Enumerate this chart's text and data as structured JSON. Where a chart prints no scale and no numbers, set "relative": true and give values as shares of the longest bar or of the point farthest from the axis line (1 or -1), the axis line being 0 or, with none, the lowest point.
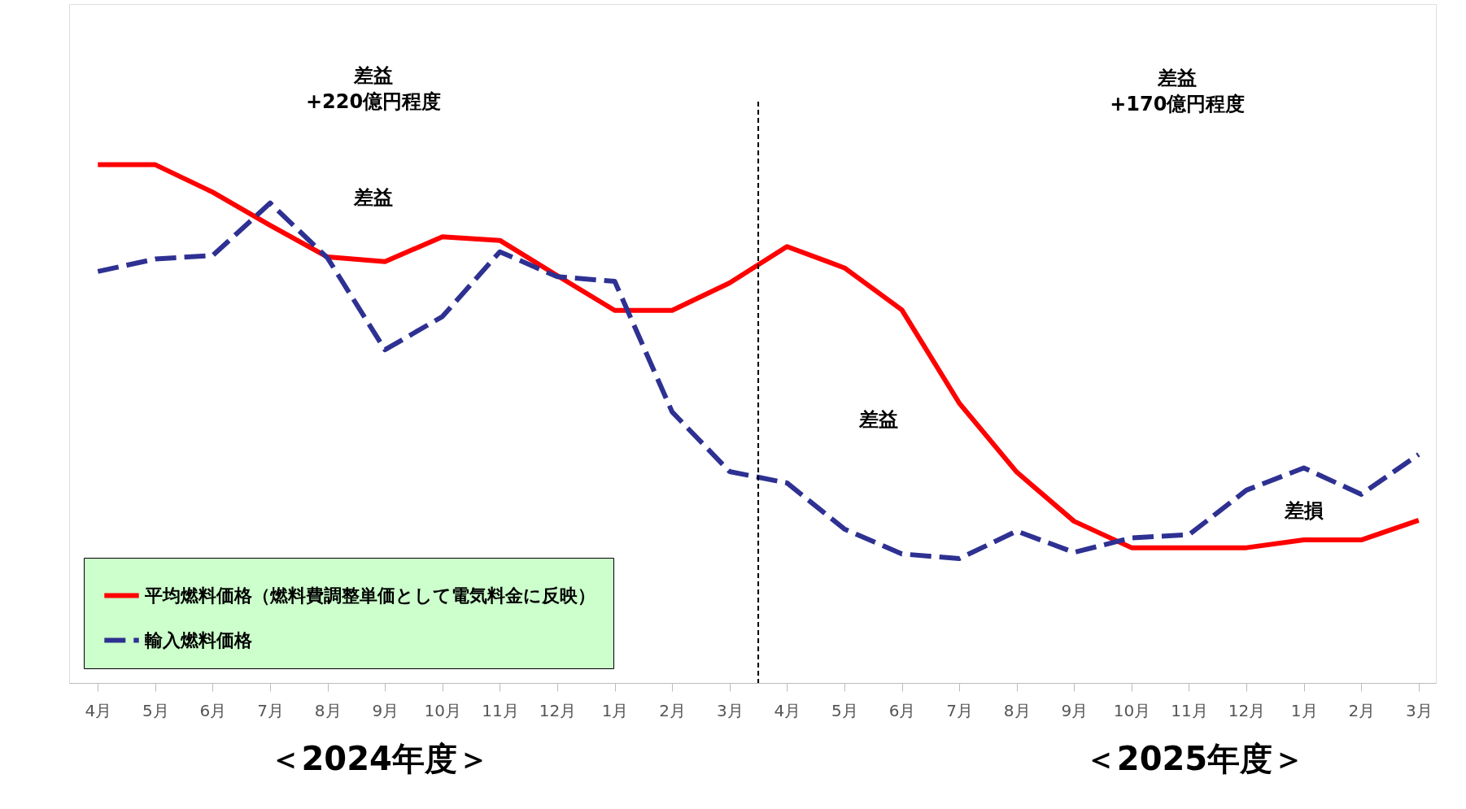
{
  "chart_data": {
    "type": "line",
    "relative": true,
    "categories": [
      "4月",
      "5月",
      "6月",
      "7月",
      "8月",
      "9月",
      "10月",
      "11月",
      "12月",
      "1月",
      "2月",
      "3月",
      "4月",
      "5月",
      "6月",
      "7月",
      "8月",
      "9月",
      "10月",
      "11月",
      "12月",
      "1月",
      "2月",
      "3月"
    ],
    "series": [
      {
        "name": "平均燃料価格（燃料費調整単価として電気料金に反映）",
        "color": "#ff0000",
        "line_style": "solid",
        "values": [
          1.0,
          1.0,
          0.947,
          0.883,
          0.822,
          0.813,
          0.861,
          0.854,
          0.786,
          0.719,
          0.719,
          0.772,
          0.842,
          0.801,
          0.72,
          0.54,
          0.407,
          0.312,
          0.261,
          0.261,
          0.261,
          0.276,
          0.276,
          0.314
        ]
      },
      {
        "name": "輸入燃料価格",
        "color": "#2e3192",
        "line_style": "dashed",
        "values": [
          0.794,
          0.818,
          0.825,
          0.926,
          0.82,
          0.643,
          0.707,
          0.832,
          0.784,
          0.775,
          0.523,
          0.408,
          0.386,
          0.297,
          0.249,
          0.24,
          0.293,
          0.252,
          0.28,
          0.286,
          0.372,
          0.415,
          0.364,
          0.441
        ]
      }
    ],
    "annotations": [
      "差益\n+220億円程度",
      "差益",
      "差益",
      "差損",
      "差益\n+170億円程度",
      "＜2024年度＞",
      "＜2025年度＞"
    ],
    "legend": "bottom left",
    "grid": false,
    "marker": "none"
  }
}
